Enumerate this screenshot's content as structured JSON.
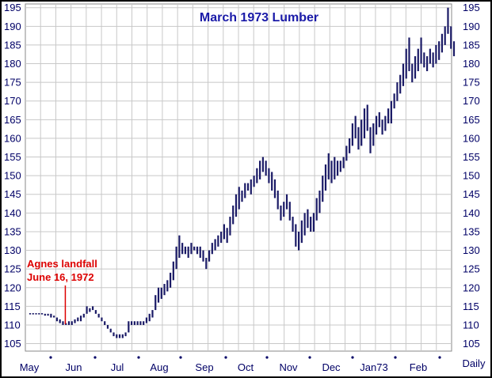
{
  "chart_data": {
    "type": "bar",
    "title": "March 1973 Lumber",
    "xlabel": "",
    "ylabel": "",
    "frequency_label": "Daily",
    "ylim": [
      103,
      196
    ],
    "yticks": [
      105,
      110,
      115,
      120,
      125,
      130,
      135,
      140,
      145,
      150,
      155,
      160,
      165,
      170,
      175,
      180,
      185,
      190,
      195
    ],
    "y_tick_labels": [
      "105",
      "110",
      "115",
      "120",
      "125",
      "130",
      "135",
      "140",
      "145",
      "150",
      "155",
      "160",
      "165",
      "170",
      "175",
      "180",
      "185",
      "190",
      "195"
    ],
    "grid": true,
    "colors": {
      "bars": "#1a1a66",
      "text": "#000066",
      "title": "#1a1aa8",
      "annotation": "#dd0000",
      "grid": "#c8c8c8",
      "plot_bg": "#ffffff"
    },
    "months": [
      "May",
      "Jun",
      "Jul",
      "Aug",
      "Sep",
      "Oct",
      "Nov",
      "Dec",
      "Jan73",
      "Feb"
    ],
    "series": [
      {
        "values": [
          [
            0,
            113,
            113
          ],
          [
            1,
            113,
            113
          ],
          [
            2,
            113,
            113
          ],
          [
            3,
            113,
            113
          ],
          [
            4,
            113,
            113
          ],
          [
            5,
            112.5,
            113
          ],
          [
            6,
            112.5,
            113
          ],
          [
            7,
            112,
            113
          ],
          [
            8,
            112,
            112.5
          ],
          [
            9,
            111,
            112
          ],
          [
            10,
            110.5,
            111.5
          ],
          [
            11,
            110,
            111
          ],
          [
            12,
            110,
            110.5
          ],
          [
            13,
            110,
            111
          ],
          [
            14,
            110,
            111
          ],
          [
            15,
            110.5,
            111.5
          ],
          [
            16,
            111,
            112
          ],
          [
            17,
            111,
            112.5
          ],
          [
            18,
            112,
            113
          ],
          [
            19,
            113,
            115
          ],
          [
            20,
            113.5,
            114.5
          ],
          [
            21,
            114,
            115
          ],
          [
            22,
            113,
            114
          ],
          [
            23,
            112,
            113
          ],
          [
            24,
            111,
            112
          ],
          [
            25,
            110,
            111
          ],
          [
            26,
            109,
            110
          ],
          [
            27,
            108,
            109
          ],
          [
            28,
            107,
            108
          ],
          [
            29,
            106.5,
            107.5
          ],
          [
            30,
            106.5,
            107.5
          ],
          [
            31,
            106.5,
            107.5
          ],
          [
            32,
            107,
            108
          ],
          [
            33,
            108,
            111
          ],
          [
            34,
            110,
            111
          ],
          [
            35,
            110,
            111
          ],
          [
            36,
            110,
            111
          ],
          [
            37,
            110,
            111
          ],
          [
            38,
            110,
            111
          ],
          [
            39,
            110.5,
            112
          ],
          [
            40,
            111,
            113
          ],
          [
            41,
            112,
            114
          ],
          [
            42,
            114,
            118
          ],
          [
            43,
            116,
            120
          ],
          [
            44,
            117,
            120
          ],
          [
            45,
            118,
            121
          ],
          [
            46,
            119,
            122
          ],
          [
            47,
            120,
            124
          ],
          [
            48,
            122,
            127
          ],
          [
            49,
            125,
            131
          ],
          [
            50,
            128,
            134
          ],
          [
            51,
            129,
            132
          ],
          [
            52,
            129,
            131
          ],
          [
            53,
            128,
            131
          ],
          [
            54,
            129,
            132
          ],
          [
            55,
            130,
            131
          ],
          [
            56,
            129,
            131
          ],
          [
            57,
            128,
            131
          ],
          [
            58,
            127,
            130
          ],
          [
            59,
            125,
            128
          ],
          [
            60,
            127,
            130
          ],
          [
            61,
            129,
            132
          ],
          [
            62,
            130,
            133
          ],
          [
            63,
            131,
            134
          ],
          [
            64,
            132,
            135
          ],
          [
            65,
            133,
            137
          ],
          [
            66,
            132,
            136
          ],
          [
            67,
            134,
            139
          ],
          [
            68,
            137,
            142
          ],
          [
            69,
            139,
            145
          ],
          [
            70,
            141,
            147
          ],
          [
            71,
            143,
            146
          ],
          [
            72,
            144,
            148
          ],
          [
            73,
            146,
            148
          ],
          [
            74,
            145,
            149
          ],
          [
            75,
            147,
            150
          ],
          [
            76,
            148,
            152
          ],
          [
            77,
            149,
            154
          ],
          [
            78,
            151,
            155
          ],
          [
            79,
            150,
            154
          ],
          [
            80,
            148,
            152
          ],
          [
            81,
            146,
            151
          ],
          [
            82,
            144,
            149
          ],
          [
            83,
            141,
            146
          ],
          [
            84,
            138,
            142
          ],
          [
            85,
            139,
            143
          ],
          [
            86,
            141,
            145
          ],
          [
            87,
            138,
            143
          ],
          [
            88,
            135,
            139
          ],
          [
            89,
            131,
            137
          ],
          [
            90,
            130,
            135
          ],
          [
            91,
            132,
            138
          ],
          [
            92,
            134,
            140
          ],
          [
            93,
            136,
            141
          ],
          [
            94,
            135,
            139
          ],
          [
            95,
            135,
            140
          ],
          [
            96,
            138,
            144
          ],
          [
            97,
            140,
            146
          ],
          [
            98,
            143,
            150
          ],
          [
            99,
            146,
            153
          ],
          [
            100,
            149,
            156
          ],
          [
            101,
            148,
            154
          ],
          [
            102,
            149,
            155
          ],
          [
            103,
            150,
            154
          ],
          [
            104,
            151,
            154
          ],
          [
            105,
            152,
            155
          ],
          [
            106,
            154,
            158
          ],
          [
            107,
            156,
            160
          ],
          [
            108,
            158,
            164
          ],
          [
            109,
            160,
            166
          ],
          [
            110,
            157,
            163
          ],
          [
            111,
            158,
            165
          ],
          [
            112,
            160,
            168
          ],
          [
            113,
            162,
            169
          ],
          [
            114,
            156,
            163
          ],
          [
            115,
            158,
            164
          ],
          [
            116,
            161,
            166
          ],
          [
            117,
            163,
            167
          ],
          [
            118,
            161,
            165
          ],
          [
            119,
            162,
            166
          ],
          [
            120,
            164,
            168
          ],
          [
            121,
            164,
            170
          ],
          [
            122,
            168,
            172
          ],
          [
            123,
            170,
            175
          ],
          [
            124,
            172,
            177
          ],
          [
            125,
            174,
            180
          ],
          [
            126,
            176,
            184
          ],
          [
            127,
            178,
            187
          ],
          [
            128,
            175,
            180
          ],
          [
            129,
            176,
            182
          ],
          [
            130,
            178,
            184
          ],
          [
            131,
            180,
            187
          ],
          [
            132,
            179,
            183
          ],
          [
            133,
            178,
            182
          ],
          [
            134,
            180,
            184
          ],
          [
            135,
            179,
            183
          ],
          [
            136,
            180,
            185
          ],
          [
            137,
            181,
            186
          ],
          [
            138,
            183,
            188
          ],
          [
            139,
            185,
            190
          ],
          [
            140,
            188,
            195
          ],
          [
            141,
            184,
            190
          ],
          [
            142,
            182,
            186
          ]
        ]
      }
    ],
    "annotation": {
      "text_line1": "Agnes landfall",
      "text_line2": "June 16, 1972",
      "index": 11,
      "price": 110
    }
  }
}
